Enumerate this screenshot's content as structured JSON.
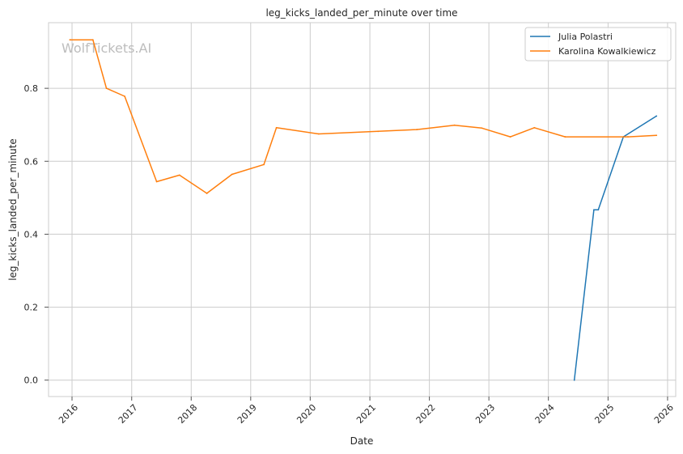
{
  "watermark": "WolfTickets.AI",
  "chart_data": {
    "type": "line",
    "title": "leg_kicks_landed_per_minute over time",
    "xlabel": "Date",
    "ylabel": "leg_kicks_landed_per_minute",
    "xlim": [
      "2015-08-10",
      "2026-02-20"
    ],
    "ylim": [
      -0.045,
      0.98
    ],
    "x_ticks": [
      "2016",
      "2017",
      "2018",
      "2019",
      "2020",
      "2021",
      "2022",
      "2023",
      "2024",
      "2025",
      "2026"
    ],
    "y_ticks": [
      "0.0",
      "0.2",
      "0.4",
      "0.6",
      "0.8"
    ],
    "grid": true,
    "legend_position": "top-right",
    "series": [
      {
        "name": "Julia Polastri",
        "color": "#1f77b4",
        "points": [
          {
            "x": "2024-06-08",
            "y": 0.0
          },
          {
            "x": "2024-10-06",
            "y": 0.467
          },
          {
            "x": "2024-11-02",
            "y": 0.467
          },
          {
            "x": "2025-04-05",
            "y": 0.667
          },
          {
            "x": "2025-10-25",
            "y": 0.724
          }
        ]
      },
      {
        "name": "Karolina Kowalkiewicz",
        "color": "#ff7f0e",
        "points": [
          {
            "x": "2015-12-19",
            "y": 0.933
          },
          {
            "x": "2016-05-08",
            "y": 0.933
          },
          {
            "x": "2016-07-30",
            "y": 0.8
          },
          {
            "x": "2016-11-19",
            "y": 0.778
          },
          {
            "x": "2017-06-03",
            "y": 0.544
          },
          {
            "x": "2017-10-21",
            "y": 0.562
          },
          {
            "x": "2018-04-07",
            "y": 0.512
          },
          {
            "x": "2018-09-08",
            "y": 0.564
          },
          {
            "x": "2019-03-23",
            "y": 0.591
          },
          {
            "x": "2019-06-08",
            "y": 0.692
          },
          {
            "x": "2020-02-22",
            "y": 0.675
          },
          {
            "x": "2021-02-20",
            "y": 0.682
          },
          {
            "x": "2021-10-16",
            "y": 0.687
          },
          {
            "x": "2022-06-04",
            "y": 0.699
          },
          {
            "x": "2022-11-19",
            "y": 0.691
          },
          {
            "x": "2023-05-13",
            "y": 0.667
          },
          {
            "x": "2023-10-07",
            "y": 0.692
          },
          {
            "x": "2024-04-13",
            "y": 0.667
          },
          {
            "x": "2025-05-03",
            "y": 0.667
          },
          {
            "x": "2025-10-25",
            "y": 0.671
          }
        ]
      }
    ]
  }
}
